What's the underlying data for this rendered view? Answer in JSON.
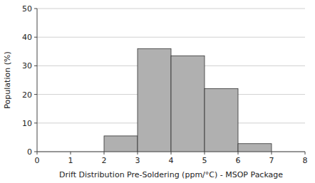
{
  "chart_data": {
    "type": "histogram",
    "xlabel": "Drift Distribution Pre-Soldering (ppm/°C) -  MSOP Package",
    "ylabel": "Population (%)",
    "bins": [
      2,
      3,
      4,
      5,
      6,
      7
    ],
    "values": [
      5.5,
      36.0,
      33.5,
      22.0,
      2.8
    ],
    "color": "#b0b0b0",
    "xlim": [
      0,
      8
    ],
    "ylim": [
      0,
      50
    ],
    "xticks": [
      0,
      1,
      2,
      3,
      4,
      5,
      6,
      7,
      8
    ],
    "yticks": [
      0,
      10,
      20,
      30,
      40,
      50
    ],
    "grid": true
  }
}
